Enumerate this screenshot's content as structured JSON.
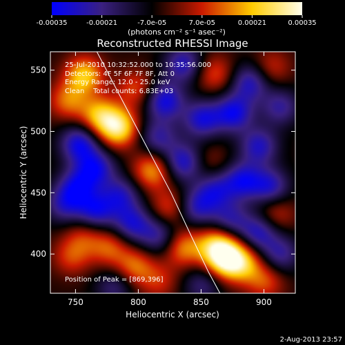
{
  "chart_data": {
    "type": "heatmap",
    "title": "Reconstructed RHESSI Image",
    "xlabel": "Heliocentric X (arcsec)",
    "ylabel": "Heliocentric Y (arcsec)",
    "xlim": [
      730,
      925
    ],
    "ylim": [
      368,
      565
    ],
    "x_ticks": [
      750,
      800,
      850,
      900
    ],
    "y_ticks": [
      400,
      450,
      500,
      550
    ],
    "colorbar": {
      "range": [
        -0.00035,
        0.00035
      ],
      "tick_values": [
        -0.00035,
        -0.00021,
        -7e-05,
        7e-05,
        0.00021,
        0.00035
      ],
      "tick_labels": [
        "-0.00035",
        "-0.00021",
        "-7.0e-05",
        "7.0e-05",
        "0.00021",
        "0.00035"
      ],
      "unit_label": "(photons cm⁻² s⁻¹ asec⁻²)",
      "colors": [
        "#0000ff",
        "#3a2080",
        "#000000",
        "#cc1a00",
        "#ffcc00",
        "#ffffee"
      ]
    },
    "limb_curve": [
      [
        767,
        565
      ],
      [
        790,
        520
      ],
      [
        808,
        485
      ],
      [
        826,
        450
      ],
      [
        842,
        415
      ],
      [
        856,
        385
      ],
      [
        865,
        368
      ]
    ],
    "peak_position": [
      869,
      396
    ],
    "sources": [
      {
        "x": 870,
        "y": 396,
        "value": 0.00035
      },
      {
        "x": 862,
        "y": 407,
        "value": 0.00025
      },
      {
        "x": 884,
        "y": 392,
        "value": 0.0002
      },
      {
        "x": 784,
        "y": 503,
        "value": 0.00032
      },
      {
        "x": 769,
        "y": 513,
        "value": 0.00024
      },
      {
        "x": 757,
        "y": 546,
        "value": 0.00026
      },
      {
        "x": 744,
        "y": 525,
        "value": 0.00018
      },
      {
        "x": 798,
        "y": 535,
        "value": 0.00015
      },
      {
        "x": 811,
        "y": 468,
        "value": 0.00022
      },
      {
        "x": 825,
        "y": 438,
        "value": 0.00015
      },
      {
        "x": 836,
        "y": 405,
        "value": 0.0002
      },
      {
        "x": 797,
        "y": 390,
        "value": 0.00018
      },
      {
        "x": 777,
        "y": 405,
        "value": 0.00016
      },
      {
        "x": 757,
        "y": 415,
        "value": 0.00012
      },
      {
        "x": 747,
        "y": 398,
        "value": 0.00014
      },
      {
        "x": 816,
        "y": 378,
        "value": 0.00012
      },
      {
        "x": 861,
        "y": 547,
        "value": 0.00015
      },
      {
        "x": 906,
        "y": 552,
        "value": 0.00012
      },
      {
        "x": 909,
        "y": 433,
        "value": 0.00013
      },
      {
        "x": 901,
        "y": 378,
        "value": 0.00015
      },
      {
        "x": 857,
        "y": 475,
        "value": 8e-05
      },
      {
        "x": 821,
        "y": 525,
        "value": -0.00026
      },
      {
        "x": 836,
        "y": 555,
        "value": -0.00022
      },
      {
        "x": 816,
        "y": 495,
        "value": -0.00018
      },
      {
        "x": 851,
        "y": 510,
        "value": -0.00024
      },
      {
        "x": 876,
        "y": 515,
        "value": -0.00026
      },
      {
        "x": 896,
        "y": 488,
        "value": -0.00022
      },
      {
        "x": 883,
        "y": 460,
        "value": -0.00024
      },
      {
        "x": 905,
        "y": 455,
        "value": -0.00022
      },
      {
        "x": 861,
        "y": 452,
        "value": -0.0002
      },
      {
        "x": 836,
        "y": 475,
        "value": -0.00024
      },
      {
        "x": 889,
        "y": 540,
        "value": -0.00022
      },
      {
        "x": 913,
        "y": 520,
        "value": -0.00018
      },
      {
        "x": 753,
        "y": 490,
        "value": -0.00026
      },
      {
        "x": 766,
        "y": 470,
        "value": -0.00024
      },
      {
        "x": 751,
        "y": 455,
        "value": -0.00022
      },
      {
        "x": 786,
        "y": 448,
        "value": -0.0002
      },
      {
        "x": 795,
        "y": 425,
        "value": -0.00022
      },
      {
        "x": 766,
        "y": 435,
        "value": -0.00024
      },
      {
        "x": 741,
        "y": 440,
        "value": -0.00018
      },
      {
        "x": 816,
        "y": 415,
        "value": -0.00018
      },
      {
        "x": 846,
        "y": 438,
        "value": -0.0002
      },
      {
        "x": 873,
        "y": 428,
        "value": -0.00018
      },
      {
        "x": 896,
        "y": 418,
        "value": -0.00022
      },
      {
        "x": 913,
        "y": 400,
        "value": -0.00018
      },
      {
        "x": 851,
        "y": 375,
        "value": -0.00014
      },
      {
        "x": 781,
        "y": 373,
        "value": -0.00014
      }
    ]
  },
  "annotations": {
    "time_range": "25-Jul-2010 10:32:52.000 to 10:35:56.000",
    "detectors": "Detectors: 4F 5F 6F 7F 8F, Att 0",
    "energy": "Energy Range: 12.0 - 25.0 keV",
    "clean": "Clean    Total counts: 6.83E+03",
    "peak": "Position of Peak = [869,396]"
  },
  "footer": {
    "date": "2-Aug-2013 23:57"
  }
}
